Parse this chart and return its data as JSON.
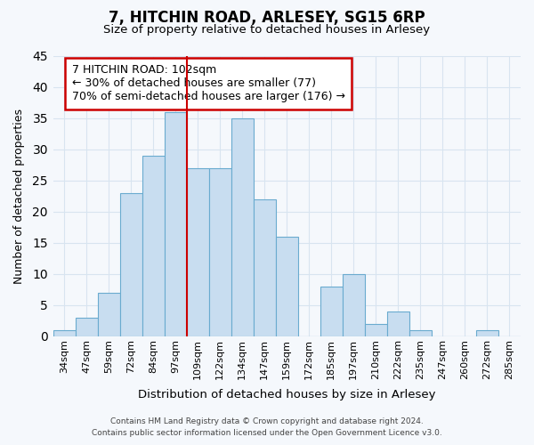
{
  "title1": "7, HITCHIN ROAD, ARLESEY, SG15 6RP",
  "title2": "Size of property relative to detached houses in Arlesey",
  "xlabel": "Distribution of detached houses by size in Arlesey",
  "ylabel": "Number of detached properties",
  "bar_color": "#c8ddf0",
  "bar_edge_color": "#6aabcf",
  "categories": [
    "34sqm",
    "47sqm",
    "59sqm",
    "72sqm",
    "84sqm",
    "97sqm",
    "109sqm",
    "122sqm",
    "134sqm",
    "147sqm",
    "159sqm",
    "172sqm",
    "185sqm",
    "197sqm",
    "210sqm",
    "222sqm",
    "235sqm",
    "247sqm",
    "260sqm",
    "272sqm",
    "285sqm"
  ],
  "values": [
    1,
    3,
    7,
    23,
    29,
    36,
    27,
    27,
    35,
    22,
    16,
    0,
    8,
    10,
    2,
    4,
    1,
    0,
    0,
    1,
    0
  ],
  "ylim": [
    0,
    45
  ],
  "yticks": [
    0,
    5,
    10,
    15,
    20,
    25,
    30,
    35,
    40,
    45
  ],
  "vline_x": 5.5,
  "vline_color": "#cc0000",
  "annotation_text": "7 HITCHIN ROAD: 102sqm\n← 30% of detached houses are smaller (77)\n70% of semi-detached houses are larger (176) →",
  "bg_color": "#f5f8fc",
  "grid_color": "#d8e4f0",
  "footer1": "Contains HM Land Registry data © Crown copyright and database right 2024.",
  "footer2": "Contains public sector information licensed under the Open Government Licence v3.0."
}
